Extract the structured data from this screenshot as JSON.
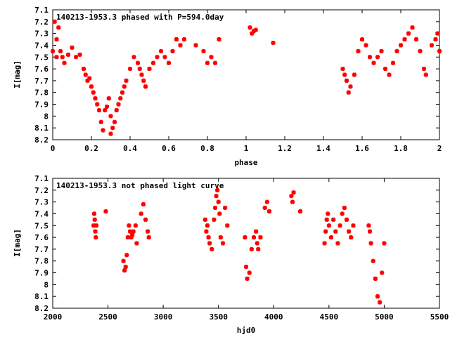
{
  "colors": {
    "points": "#ff0000",
    "axes": "#000000",
    "background": "#ffffff"
  },
  "chart_data": [
    {
      "type": "scatter",
      "title": "140213-1953.3 phased with P=594.0day",
      "xlabel": "phase",
      "ylabel": "I[mag]",
      "xlim": [
        0,
        2
      ],
      "ylim": [
        7.1,
        8.2
      ],
      "y_inverted": true,
      "xticks": [
        "0",
        "0.2",
        "0.4",
        "0.6",
        "0.8",
        "1",
        "1.2",
        "1.4",
        "1.6",
        "1.8",
        "2"
      ],
      "yticks": [
        "7.1",
        "7.2",
        "7.3",
        "7.4",
        "7.5",
        "7.6",
        "7.7",
        "7.8",
        "7.9",
        "8",
        "8.1",
        "8.2"
      ],
      "grid": false,
      "x": [
        0.0,
        0.01,
        0.02,
        0.02,
        0.03,
        0.04,
        0.05,
        0.06,
        0.08,
        0.1,
        0.12,
        0.14,
        0.16,
        0.17,
        0.18,
        0.19,
        0.2,
        0.21,
        0.22,
        0.23,
        0.24,
        0.25,
        0.26,
        0.27,
        0.28,
        0.29,
        0.3,
        0.3,
        0.31,
        0.32,
        0.33,
        0.34,
        0.35,
        0.36,
        0.37,
        0.38,
        0.4,
        0.42,
        0.44,
        0.45,
        0.46,
        0.47,
        0.48,
        0.5,
        0.52,
        0.54,
        0.56,
        0.58,
        0.6,
        0.62,
        0.64,
        0.66,
        0.68,
        0.74,
        0.78,
        0.8,
        0.82,
        0.84,
        0.86,
        1.02,
        1.03,
        1.04,
        1.05,
        1.14,
        1.5,
        1.51,
        1.52,
        1.53,
        1.54,
        1.56,
        1.58,
        1.6,
        1.62,
        1.64,
        1.66,
        1.68,
        1.7,
        1.72,
        1.74,
        1.76,
        1.78,
        1.8,
        1.82,
        1.84,
        1.86,
        1.88,
        1.9,
        1.92,
        1.93,
        1.96,
        1.98,
        1.99,
        2.0
      ],
      "y": [
        7.45,
        7.2,
        7.5,
        7.35,
        7.25,
        7.45,
        7.5,
        7.55,
        7.48,
        7.42,
        7.5,
        7.48,
        7.6,
        7.65,
        7.7,
        7.68,
        7.75,
        7.8,
        7.85,
        7.9,
        7.95,
        8.05,
        8.12,
        7.95,
        7.92,
        7.85,
        8.0,
        8.15,
        8.1,
        8.05,
        7.95,
        7.9,
        7.85,
        7.8,
        7.75,
        7.7,
        7.6,
        7.5,
        7.55,
        7.6,
        7.65,
        7.7,
        7.75,
        7.6,
        7.55,
        7.5,
        7.45,
        7.5,
        7.55,
        7.45,
        7.35,
        7.4,
        7.35,
        7.4,
        7.45,
        7.55,
        7.5,
        7.55,
        7.35,
        7.25,
        7.3,
        7.28,
        7.27,
        7.38,
        7.6,
        7.65,
        7.7,
        7.8,
        7.75,
        7.65,
        7.45,
        7.35,
        7.4,
        7.5,
        7.55,
        7.5,
        7.45,
        7.6,
        7.65,
        7.55,
        7.45,
        7.4,
        7.35,
        7.3,
        7.25,
        7.35,
        7.45,
        7.6,
        7.65,
        7.4,
        7.35,
        7.3,
        7.45
      ]
    },
    {
      "type": "scatter",
      "title": "140213-1953.3 not phased light curve",
      "xlabel": "hjd0",
      "ylabel": "I[mag]",
      "xlim": [
        2000,
        5500
      ],
      "ylim": [
        7.1,
        8.2
      ],
      "y_inverted": true,
      "xticks": [
        "2000",
        "2500",
        "3000",
        "3500",
        "4000",
        "4500",
        "5000",
        "5500"
      ],
      "yticks": [
        "7.1",
        "7.2",
        "7.3",
        "7.4",
        "7.5",
        "7.6",
        "7.7",
        "7.8",
        "7.9",
        "8",
        "8.1",
        "8.2"
      ],
      "grid": false,
      "x": [
        2370,
        2375,
        2380,
        2385,
        2390,
        2395,
        2480,
        2640,
        2650,
        2660,
        2670,
        2680,
        2690,
        2700,
        2710,
        2720,
        2730,
        2750,
        2760,
        2800,
        2820,
        2840,
        2860,
        2870,
        3380,
        3390,
        3400,
        3410,
        3420,
        3440,
        3460,
        3470,
        3480,
        3490,
        3500,
        3510,
        3520,
        3540,
        3560,
        3580,
        3740,
        3750,
        3760,
        3780,
        3800,
        3820,
        3840,
        3850,
        3860,
        3880,
        3920,
        3940,
        3960,
        4160,
        4170,
        4180,
        4240,
        4460,
        4470,
        4480,
        4490,
        4500,
        4520,
        4540,
        4560,
        4580,
        4600,
        4620,
        4640,
        4660,
        4680,
        4700,
        4720,
        4860,
        4870,
        4880,
        4900,
        4920,
        4940,
        4960,
        4980,
        5000
      ],
      "y": [
        7.5,
        7.4,
        7.45,
        7.55,
        7.6,
        7.5,
        7.38,
        7.8,
        7.88,
        7.85,
        7.75,
        7.6,
        7.5,
        7.55,
        7.6,
        7.58,
        7.55,
        7.5,
        7.65,
        7.4,
        7.32,
        7.45,
        7.55,
        7.6,
        7.45,
        7.55,
        7.5,
        7.6,
        7.65,
        7.7,
        7.45,
        7.35,
        7.25,
        7.2,
        7.3,
        7.4,
        7.6,
        7.65,
        7.35,
        7.5,
        7.6,
        7.85,
        7.95,
        7.9,
        7.7,
        7.6,
        7.55,
        7.65,
        7.7,
        7.6,
        7.35,
        7.3,
        7.38,
        7.25,
        7.3,
        7.22,
        7.38,
        7.65,
        7.55,
        7.45,
        7.4,
        7.5,
        7.6,
        7.45,
        7.55,
        7.65,
        7.5,
        7.4,
        7.35,
        7.45,
        7.55,
        7.6,
        7.5,
        7.5,
        7.55,
        7.65,
        7.8,
        7.95,
        8.1,
        8.15,
        7.9,
        7.65
      ]
    }
  ]
}
